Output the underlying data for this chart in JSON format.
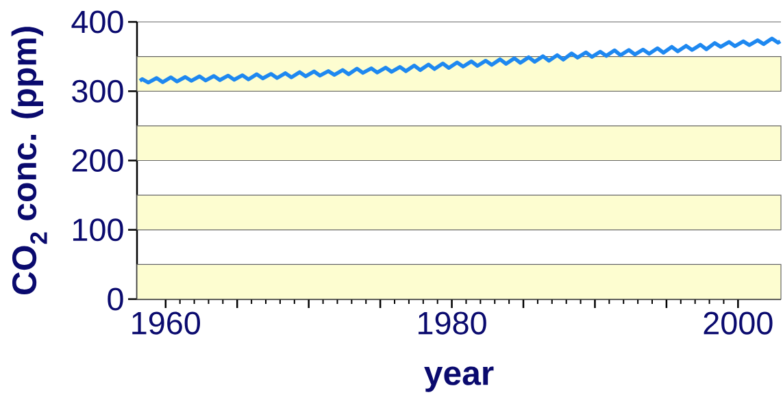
{
  "chart_data": {
    "type": "line",
    "xlabel": "year",
    "ylabel": "CO$_{2}$ conc. (ppm)",
    "xlim": [
      1958,
      2003
    ],
    "ylim": [
      0,
      400
    ],
    "xticks": [
      1960,
      {
        "value": 1965,
        "label": null
      },
      {
        "value": 1970,
        "label": null
      },
      {
        "value": 1975,
        "label": null
      },
      1980,
      {
        "value": 1985,
        "label": null
      },
      {
        "value": 1990,
        "label": null
      },
      {
        "value": 1995,
        "label": null
      },
      2000
    ],
    "yticks": [
      0,
      100,
      200,
      300,
      400
    ],
    "grid": "y",
    "marker": "none",
    "bands": [
      {
        "axis": "y",
        "from": 0,
        "to": 50,
        "color": "#fdfdd0"
      },
      {
        "axis": "y",
        "from": 100,
        "to": 150,
        "color": "#fdfdd0"
      },
      {
        "axis": "y",
        "from": 200,
        "to": 250,
        "color": "#fdfdd0"
      },
      {
        "axis": "y",
        "from": 300,
        "to": 350,
        "color": "#fdfdd0"
      }
    ],
    "series": [
      {
        "color": "#1e88f0",
        "x": [
          1958.2,
          1958.37,
          1958.79,
          1959.37,
          1959.79,
          1960.37,
          1960.79,
          1961.37,
          1961.79,
          1962.37,
          1962.79,
          1963.37,
          1963.79,
          1964.37,
          1964.79,
          1965.37,
          1965.79,
          1966.37,
          1966.79,
          1967.37,
          1967.79,
          1968.37,
          1968.79,
          1969.37,
          1969.79,
          1970.37,
          1970.79,
          1971.37,
          1971.79,
          1972.37,
          1972.79,
          1973.37,
          1973.79,
          1974.37,
          1974.79,
          1975.37,
          1975.79,
          1976.37,
          1976.79,
          1977.37,
          1977.79,
          1978.37,
          1978.79,
          1979.37,
          1979.79,
          1980.37,
          1980.79,
          1981.37,
          1981.79,
          1982.37,
          1982.79,
          1983.37,
          1983.79,
          1984.37,
          1984.79,
          1985.37,
          1985.79,
          1986.37,
          1986.79,
          1987.37,
          1987.79,
          1988.37,
          1988.79,
          1989.37,
          1989.79,
          1990.37,
          1990.79,
          1991.37,
          1991.79,
          1992.37,
          1992.79,
          1993.37,
          1993.79,
          1994.37,
          1994.79,
          1995.37,
          1995.79,
          1996.37,
          1996.79,
          1997.37,
          1997.79,
          1998.37,
          1998.79,
          1999.37,
          1999.79,
          2000.37,
          2000.79,
          2001.37,
          2001.79,
          2002.37,
          2002.79,
          2002.95
        ],
        "values": [
          315,
          317.5,
          312.5,
          319,
          313,
          320,
          314,
          320.5,
          315,
          321.5,
          315.5,
          322,
          316,
          322.5,
          316.5,
          323,
          317,
          324.5,
          318.5,
          325,
          319,
          326,
          320,
          327.5,
          321.5,
          328.5,
          322.5,
          329,
          323.5,
          330.5,
          324.5,
          332.5,
          326.5,
          333,
          327,
          334,
          328,
          335,
          329,
          337,
          330.5,
          338.5,
          332,
          340,
          333.5,
          341.5,
          335.5,
          343,
          336.5,
          344,
          338,
          346,
          339.5,
          347.5,
          341,
          349,
          342.5,
          350.5,
          344,
          352,
          345.5,
          354.5,
          348.5,
          356,
          349.5,
          357,
          351,
          359,
          352,
          359.5,
          353,
          360,
          354,
          362,
          355.5,
          364,
          357.5,
          365.5,
          359.5,
          367,
          360.5,
          369.5,
          364,
          371,
          365,
          372,
          366.5,
          373.5,
          368,
          376,
          370,
          372
        ]
      }
    ]
  }
}
